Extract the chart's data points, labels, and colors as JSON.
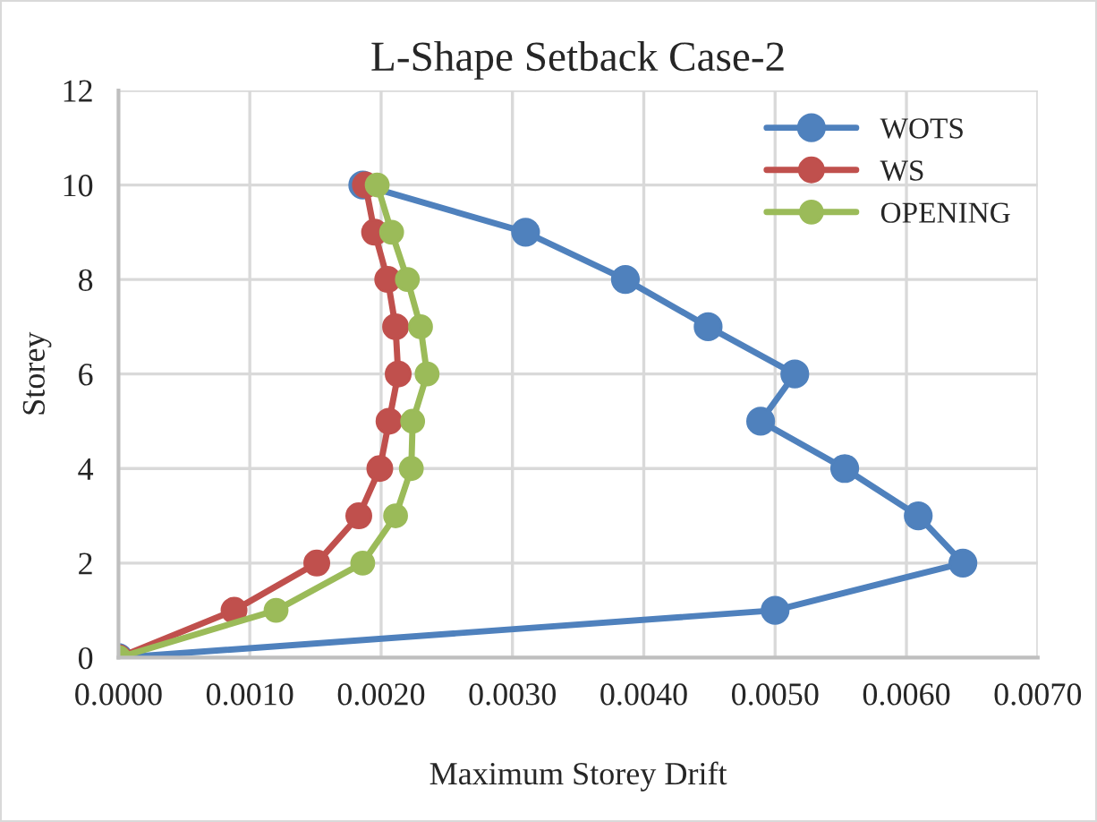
{
  "chart_data": {
    "type": "line",
    "title": "L-Shape Setback Case-2",
    "xlabel": "Maximum Storey Drift",
    "ylabel": "Storey",
    "series": [
      {
        "name": "WOTS",
        "color": "#4f81bd",
        "x": [
          0,
          0.005,
          0.00643,
          0.00609,
          0.00553,
          0.00489,
          0.00515,
          0.00449,
          0.00386,
          0.0031,
          0.00186
        ],
        "values": [
          0,
          1,
          2,
          3,
          4,
          5,
          6,
          7,
          8,
          9,
          10
        ]
      },
      {
        "name": "WS",
        "color": "#c0504d",
        "x": [
          0,
          0.00088,
          0.00151,
          0.00183,
          0.00199,
          0.00206,
          0.00213,
          0.00211,
          0.00205,
          0.00195,
          0.00188
        ],
        "values": [
          0,
          1,
          2,
          3,
          4,
          5,
          6,
          7,
          8,
          9,
          10
        ]
      },
      {
        "name": "OPENING",
        "color": "#9bbb59",
        "x": [
          0,
          0.0012,
          0.00186,
          0.00211,
          0.00223,
          0.00224,
          0.00235,
          0.0023,
          0.0022,
          0.00208,
          0.00197
        ],
        "values": [
          0,
          1,
          2,
          3,
          4,
          5,
          6,
          7,
          8,
          9,
          10
        ]
      }
    ],
    "xlim": [
      0,
      0.007
    ],
    "xticks": [
      {
        "value": 0,
        "label": "0.0000"
      },
      {
        "value": 0.001,
        "label": "0.0010"
      },
      {
        "value": 0.002,
        "label": "0.0020"
      },
      {
        "value": 0.003,
        "label": "0.0030"
      },
      {
        "value": 0.004,
        "label": "0.0040"
      },
      {
        "value": 0.005,
        "label": "0.0050"
      },
      {
        "value": 0.006,
        "label": "0.0060"
      },
      {
        "value": 0.007,
        "label": "0.0070"
      }
    ],
    "ylim": [
      0,
      12
    ],
    "yticks": [
      0,
      2,
      4,
      6,
      8,
      10,
      12
    ],
    "grid": true,
    "legend": "top right",
    "marker": "circle",
    "line_style": "solid"
  }
}
